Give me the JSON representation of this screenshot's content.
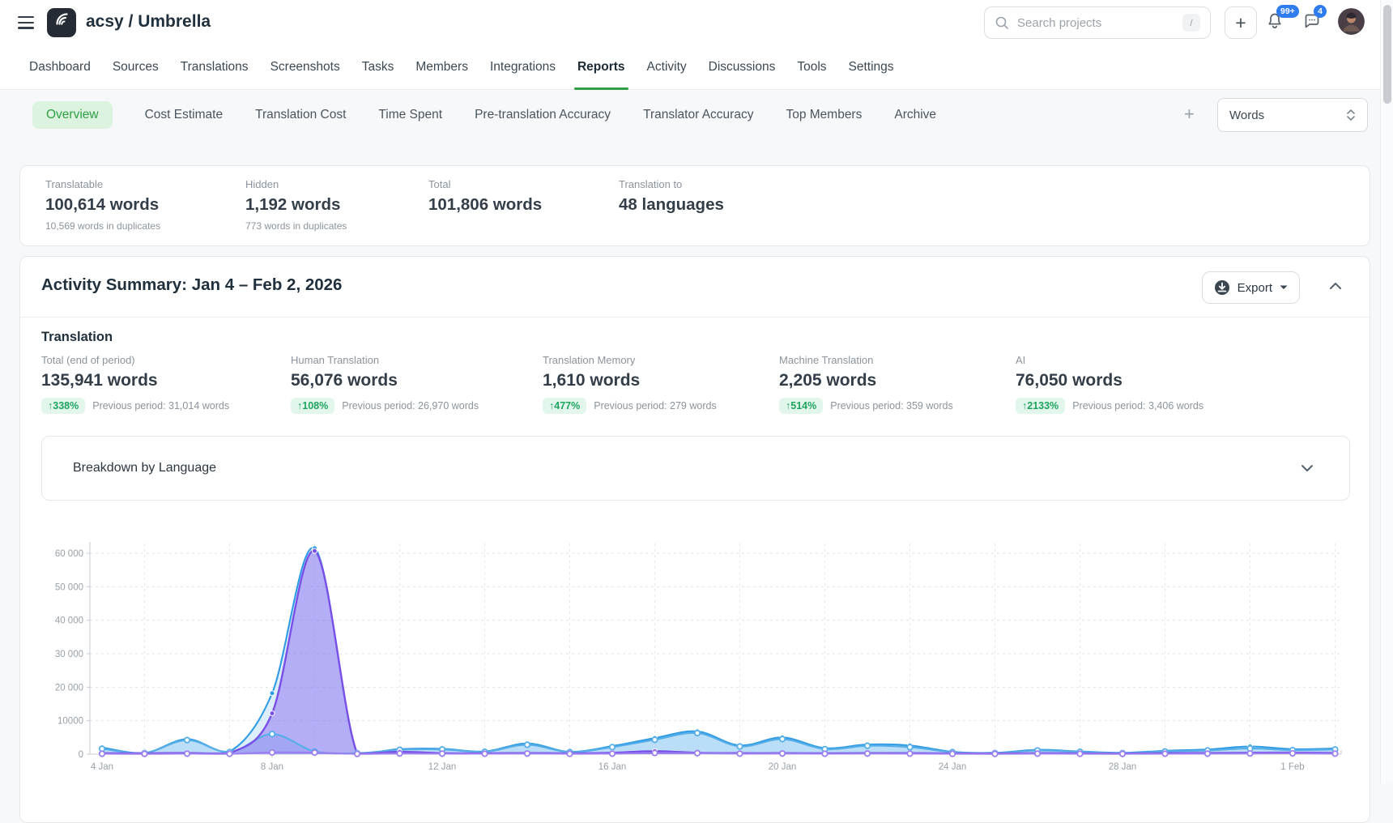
{
  "header": {
    "project_title": "acsy / Umbrella",
    "search_placeholder": "Search projects",
    "search_shortcut": "/",
    "notifications_badge": "99+",
    "messages_badge": "4"
  },
  "nav": {
    "items": [
      "Dashboard",
      "Sources",
      "Translations",
      "Screenshots",
      "Tasks",
      "Members",
      "Integrations",
      "Reports",
      "Activity",
      "Discussions",
      "Tools",
      "Settings"
    ],
    "active": "Reports"
  },
  "subtabs": {
    "items": [
      "Overview",
      "Cost Estimate",
      "Translation Cost",
      "Time Spent",
      "Pre-translation Accuracy",
      "Translator Accuracy",
      "Top Members",
      "Archive"
    ],
    "active": "Overview",
    "add_label": "+",
    "unit_selector": "Words"
  },
  "summary_stats": {
    "cards": [
      {
        "label": "Translatable",
        "value": "100,614 words",
        "note": "10,569 words in duplicates"
      },
      {
        "label": "Hidden",
        "value": "1,192 words",
        "note": "773 words in duplicates"
      },
      {
        "label": "Total",
        "value": "101,806 words",
        "note": ""
      },
      {
        "label": "Translation to",
        "value": "48 languages",
        "note": ""
      }
    ]
  },
  "activity": {
    "title": "Activity Summary: Jan 4 – Feb 2, 2026",
    "export_label": "Export",
    "section_title": "Translation",
    "metrics": [
      {
        "label": "Total (end of period)",
        "value": "135,941 words",
        "trend": "↑338%",
        "previous": "Previous period: 31,014 words"
      },
      {
        "label": "Human Translation",
        "value": "56,076 words",
        "trend": "↑108%",
        "previous": "Previous period: 26,970 words"
      },
      {
        "label": "Translation Memory",
        "value": "1,610 words",
        "trend": "↑477%",
        "previous": "Previous period: 279 words"
      },
      {
        "label": "Machine Translation",
        "value": "2,205 words",
        "trend": "↑514%",
        "previous": "Previous period: 359 words"
      },
      {
        "label": "AI",
        "value": "76,050 words",
        "trend": "↑2133%",
        "previous": "Previous period: 3,406 words"
      }
    ]
  },
  "breakdown": {
    "label": "Breakdown by Language"
  },
  "colors": {
    "accent_green": "#2f9e44",
    "badge_blue": "#2e7cf0",
    "trend_green": "#1ea45f"
  },
  "chart_data": {
    "type": "area",
    "title": "",
    "grid": "dashed",
    "num_days": 30,
    "start_label": "4 Jan",
    "end_label": "2 Feb",
    "x_tick_labels": [
      "4 Jan",
      "8 Jan",
      "12 Jan",
      "16 Jan",
      "20 Jan",
      "24 Jan",
      "28 Jan",
      "1 Feb"
    ],
    "x_label_every_days": 4,
    "y_tick_labels": [
      "0",
      "10000",
      "20 000",
      "30 000",
      "40 000",
      "50 000",
      "60 000"
    ],
    "y_tick_step": 10000,
    "ylim": [
      0,
      65000
    ],
    "series": [
      {
        "name": "series-blue",
        "color": "#2e9be4",
        "fill": "rgba(140,200,242,0.30)",
        "marker": "solid",
        "values": [
          2000,
          350,
          4500,
          800,
          18200,
          61500,
          350,
          1500,
          1600,
          800,
          3200,
          700,
          2400,
          4800,
          6800,
          2600,
          5000,
          1800,
          2900,
          2600,
          700,
          400,
          1300,
          800,
          400,
          1000,
          1400,
          2300,
          1500,
          1700
        ]
      },
      {
        "name": "series-light-blue",
        "color": "#56aee8",
        "fill": "rgba(160,210,245,0.50)",
        "marker": "hollow",
        "values": [
          1600,
          300,
          4200,
          600,
          6000,
          800,
          300,
          1300,
          1400,
          700,
          2800,
          600,
          2100,
          4300,
          6300,
          2300,
          4500,
          1500,
          2500,
          2100,
          600,
          300,
          1100,
          700,
          300,
          800,
          1100,
          1700,
          1200,
          1400
        ]
      },
      {
        "name": "series-purple",
        "color": "#7a4fe8",
        "fill": "rgba(138,110,240,0.50)",
        "marker": "solid",
        "values": [
          300,
          250,
          350,
          300,
          12200,
          60700,
          250,
          700,
          300,
          250,
          350,
          250,
          400,
          900,
          400,
          300,
          300,
          250,
          300,
          300,
          250,
          200,
          300,
          250,
          200,
          300,
          350,
          400,
          450,
          350
        ]
      },
      {
        "name": "series-light-purple",
        "color": "#9b7ef0",
        "fill": "none",
        "marker": "hollow",
        "values": [
          120,
          80,
          150,
          100,
          500,
          450,
          80,
          200,
          150,
          120,
          200,
          100,
          150,
          350,
          300,
          150,
          200,
          120,
          180,
          150,
          100,
          80,
          150,
          100,
          80,
          120,
          150,
          200,
          250,
          150
        ]
      }
    ]
  }
}
